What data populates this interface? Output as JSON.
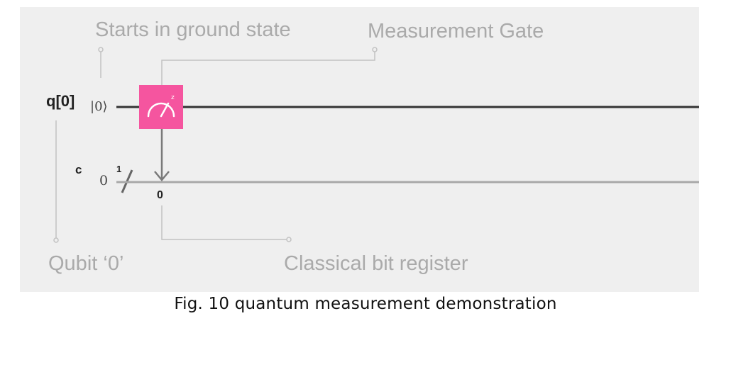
{
  "diagram": {
    "annotations": {
      "ground_state": "Starts in ground state",
      "measurement_gate": "Measurement Gate",
      "qubit": "Qubit ‘0’",
      "classical_register": "Classical bit register"
    },
    "quantum_register": {
      "label": "q[0]",
      "initial_state": "|0⟩"
    },
    "classical_register": {
      "label": "c",
      "initial_value": "0",
      "bus_width": "1",
      "target_bit": "0"
    },
    "gate": {
      "name": "measurement-gate",
      "icon": "meter-icon",
      "superscript": "z",
      "color": "#f5559f"
    },
    "colors": {
      "quantum_wire": "#333333",
      "classical_wire": "#a8a8a8",
      "callout_line": "#c2c2c2",
      "background": "#efefef"
    }
  },
  "caption": "Fig. 10 quantum measurement demonstration"
}
